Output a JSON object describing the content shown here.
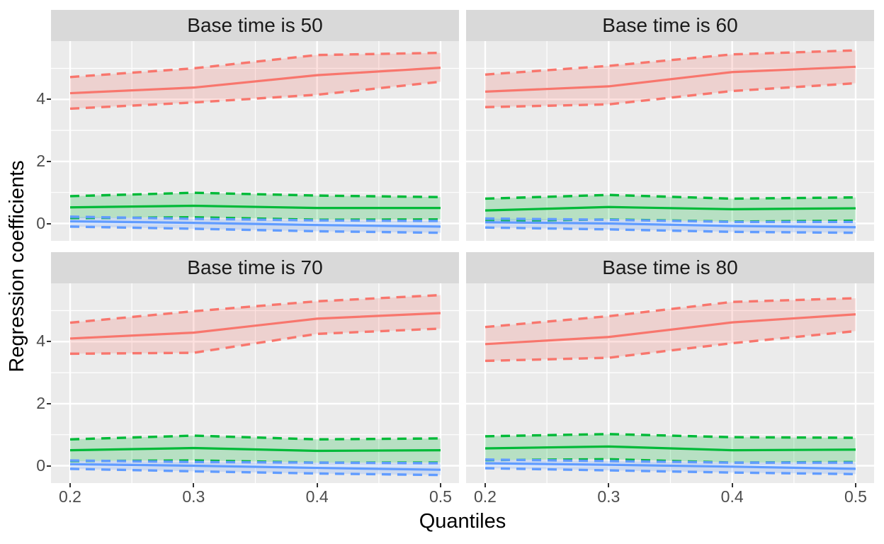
{
  "figure_title": "",
  "axes": {
    "x_title": "Quantiles",
    "y_title": "Regression coefficients",
    "x_tick_labels": [
      "0.2",
      "0.3",
      "0.4",
      "0.5"
    ],
    "y_tick_labels": [
      "4",
      "2",
      "0"
    ]
  },
  "colors": {
    "panel_background": "#ebebeb",
    "strip_background": "#d9d9d9",
    "gridline": "#ffffff",
    "tick_mark": "#333333",
    "tick_text": "#4d4d4d",
    "title_text": "#000000",
    "series_red": "#F8766D",
    "series_green": "#00BA38",
    "series_blue": "#619CFF"
  },
  "chart_data": {
    "type": "line",
    "subtype": "faceted ribbon plot: solid estimate line with dashed upper/lower confidence bounds and shaded band, 3 series per facet",
    "xlabel": "Quantiles",
    "ylabel": "Regression coefficients",
    "x": [
      0.2,
      0.3,
      0.4,
      0.5
    ],
    "x_ticks": [
      0.2,
      0.3,
      0.4,
      0.5
    ],
    "y_ticks": [
      0,
      2,
      4
    ],
    "y_minor_ticks": [
      1,
      3,
      5
    ],
    "x_minor_ticks": [
      0.25,
      0.35,
      0.45
    ],
    "ylim": [
      -0.55,
      5.88
    ],
    "xlim": [
      0.185,
      0.515
    ],
    "grid": "white major and minor gridlines on gray panel",
    "legend_position": "none",
    "facets": [
      {
        "title": "Base time is 50",
        "series": [
          {
            "name": "red",
            "color": "#F8766D",
            "estimate": [
              4.2,
              4.38,
              4.78,
              5.02
            ],
            "upper": [
              4.72,
              5.0,
              5.43,
              5.5
            ],
            "lower": [
              3.7,
              3.9,
              4.15,
              4.57
            ]
          },
          {
            "name": "green",
            "color": "#00BA38",
            "estimate": [
              0.52,
              0.57,
              0.5,
              0.5
            ],
            "upper": [
              0.88,
              0.99,
              0.9,
              0.85
            ],
            "lower": [
              0.17,
              0.2,
              0.12,
              0.13
            ]
          },
          {
            "name": "blue",
            "color": "#619CFF",
            "estimate": [
              0.07,
              0.02,
              -0.05,
              -0.1
            ],
            "upper": [
              0.22,
              0.15,
              0.1,
              0.08
            ],
            "lower": [
              -0.1,
              -0.17,
              -0.25,
              -0.3
            ]
          }
        ]
      },
      {
        "title": "Base time is 60",
        "series": [
          {
            "name": "red",
            "color": "#F8766D",
            "estimate": [
              4.25,
              4.42,
              4.88,
              5.05
            ],
            "upper": [
              4.8,
              5.08,
              5.45,
              5.58
            ],
            "lower": [
              3.75,
              3.84,
              4.27,
              4.52
            ]
          },
          {
            "name": "green",
            "color": "#00BA38",
            "estimate": [
              0.42,
              0.53,
              0.46,
              0.49
            ],
            "upper": [
              0.8,
              0.92,
              0.8,
              0.84
            ],
            "lower": [
              0.08,
              0.13,
              0.06,
              0.09
            ]
          },
          {
            "name": "blue",
            "color": "#619CFF",
            "estimate": [
              0.04,
              0.0,
              -0.08,
              -0.12
            ],
            "upper": [
              0.16,
              0.12,
              0.05,
              0.05
            ],
            "lower": [
              -0.13,
              -0.19,
              -0.27,
              -0.3
            ]
          }
        ]
      },
      {
        "title": "Base time is 70",
        "series": [
          {
            "name": "red",
            "color": "#F8766D",
            "estimate": [
              4.1,
              4.29,
              4.74,
              4.92
            ],
            "upper": [
              4.61,
              4.98,
              5.3,
              5.5
            ],
            "lower": [
              3.61,
              3.64,
              4.25,
              4.42
            ]
          },
          {
            "name": "green",
            "color": "#00BA38",
            "estimate": [
              0.5,
              0.57,
              0.48,
              0.5
            ],
            "upper": [
              0.85,
              0.97,
              0.85,
              0.88
            ],
            "lower": [
              0.15,
              0.17,
              0.1,
              0.1
            ]
          },
          {
            "name": "blue",
            "color": "#619CFF",
            "estimate": [
              0.05,
              0.0,
              -0.07,
              -0.13
            ],
            "upper": [
              0.17,
              0.12,
              0.1,
              0.08
            ],
            "lower": [
              -0.1,
              -0.18,
              -0.25,
              -0.3
            ]
          }
        ]
      },
      {
        "title": "Base time is 80",
        "series": [
          {
            "name": "red",
            "color": "#F8766D",
            "estimate": [
              3.92,
              4.15,
              4.62,
              4.88
            ],
            "upper": [
              4.47,
              4.82,
              5.28,
              5.4
            ],
            "lower": [
              3.38,
              3.48,
              3.95,
              4.34
            ]
          },
          {
            "name": "green",
            "color": "#00BA38",
            "estimate": [
              0.56,
              0.62,
              0.5,
              0.52
            ],
            "upper": [
              0.95,
              1.02,
              0.92,
              0.9
            ],
            "lower": [
              0.18,
              0.21,
              0.1,
              0.12
            ]
          },
          {
            "name": "blue",
            "color": "#619CFF",
            "estimate": [
              0.08,
              0.03,
              -0.03,
              -0.1
            ],
            "upper": [
              0.2,
              0.15,
              0.1,
              0.1
            ],
            "lower": [
              -0.08,
              -0.15,
              -0.22,
              -0.27
            ]
          }
        ]
      }
    ]
  }
}
